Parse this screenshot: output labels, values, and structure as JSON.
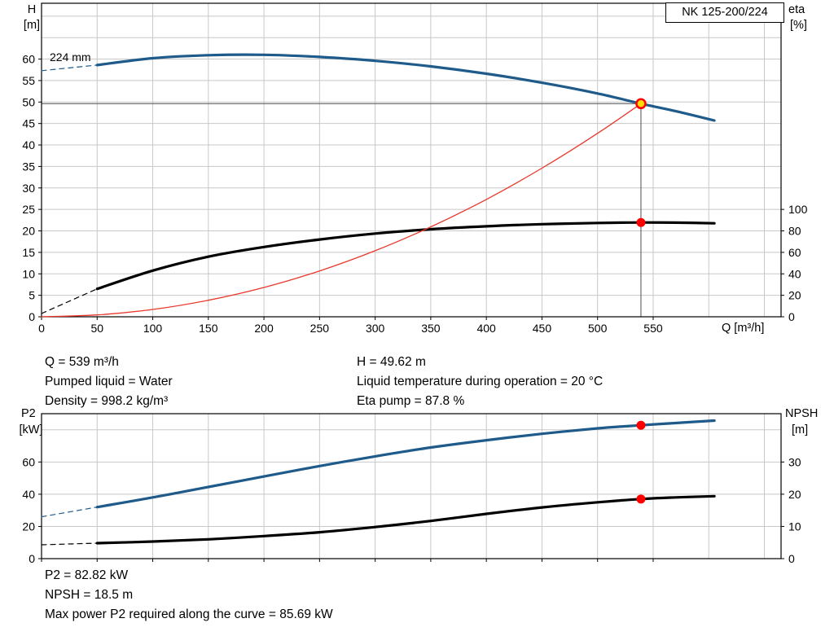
{
  "labels": {
    "h_axis": "H",
    "h_unit": "[m]",
    "eta_axis": "eta",
    "eta_unit": "[%]",
    "pump_name": "NK 125-200/224",
    "impeller_diameter": "224 mm",
    "q_axis": "Q [m³/h]",
    "p2_axis": "P2",
    "p2_unit": "[kW]",
    "npsh_axis": "NPSH",
    "npsh_unit": "[m]"
  },
  "operating_point_info": {
    "q": "Q = 539 m³/h",
    "pumped_liquid": "Pumped liquid = Water",
    "density": "Density = 998.2 kg/m³",
    "h": "H = 49.62 m",
    "liquid_temperature": "Liquid temperature during operation = 20 °C",
    "eta_pump": "Eta pump = 87.8 %"
  },
  "power_info": {
    "p2": "P2 = 82.82 kW",
    "npsh": "NPSH = 18.5 m",
    "max_power": "Max power P2 required along the curve = 85.69 kW"
  },
  "colors": {
    "curve_blue": "#1e5a8a",
    "curve_black": "#000000",
    "curve_red": "#e8382c",
    "marker_red": "#ff0000",
    "marker_yellow": "#ffdd00",
    "grid": "#c8c8c8",
    "axis": "#000000",
    "ref_line": "#4d4d4d"
  },
  "chart_data": [
    {
      "id": "head-capacity-chart",
      "type": "line",
      "title": "NK 125-200/224",
      "x_axis": {
        "label": "Q [m³/h]",
        "min": 0,
        "max": 665,
        "ticks": [
          0,
          50,
          100,
          150,
          200,
          250,
          300,
          350,
          400,
          450,
          500,
          550
        ],
        "grid": [
          50,
          100,
          150,
          200,
          250,
          300,
          350,
          400,
          450,
          500,
          550,
          600,
          650
        ]
      },
      "y_left": {
        "label": "H [m]",
        "min": 0,
        "max": 73,
        "ticks": [
          0,
          5,
          10,
          15,
          20,
          25,
          30,
          35,
          40,
          45,
          50,
          55,
          60
        ],
        "grid": [
          5,
          10,
          15,
          20,
          25,
          30,
          35,
          40,
          45,
          50,
          55,
          60,
          65,
          70
        ]
      },
      "y_right": {
        "label": "eta [%]",
        "min": 0,
        "max": 292,
        "ticks": [
          0,
          20,
          40,
          60,
          80,
          100
        ]
      },
      "duty_point": {
        "Q": 539,
        "H": 49.62,
        "eta": 87.8
      },
      "ref_lines": [
        {
          "x1": 0,
          "y1": 49.62,
          "x2": 539,
          "y2": 49.62
        },
        {
          "x1": 539,
          "y1": 0,
          "x2": 539,
          "y2": 49.62
        }
      ],
      "series": [
        {
          "name": "head-curve-dashed-extension",
          "color": "#1e5a8a",
          "width": 1.2,
          "dash": "6 5",
          "axis": "left",
          "points": [
            [
              0,
              57.3
            ],
            [
              50,
              58.6
            ]
          ]
        },
        {
          "name": "head-curve-224mm",
          "color": "#1e5a8a",
          "width": 3.2,
          "axis": "left",
          "points": [
            [
              50,
              58.6
            ],
            [
              100,
              60.2
            ],
            [
              150,
              60.9
            ],
            [
              200,
              61.0
            ],
            [
              250,
              60.5
            ],
            [
              300,
              59.6
            ],
            [
              350,
              58.3
            ],
            [
              400,
              56.6
            ],
            [
              450,
              54.5
            ],
            [
              500,
              52.0
            ],
            [
              539,
              49.62
            ],
            [
              570,
              47.9
            ],
            [
              605,
              45.7
            ]
          ]
        },
        {
          "name": "efficiency-curve-dashed-extension",
          "color": "#000000",
          "width": 1.2,
          "dash": "6 5",
          "axis": "right",
          "points": [
            [
              0,
              3
            ],
            [
              50,
              26
            ]
          ]
        },
        {
          "name": "efficiency-curve",
          "color": "#000000",
          "width": 3.2,
          "axis": "right",
          "points": [
            [
              50,
              26
            ],
            [
              100,
              43
            ],
            [
              150,
              56
            ],
            [
              200,
              65
            ],
            [
              250,
              72
            ],
            [
              300,
              77.5
            ],
            [
              350,
              81.5
            ],
            [
              400,
              84.3
            ],
            [
              450,
              86.2
            ],
            [
              500,
              87.4
            ],
            [
              539,
              87.8
            ],
            [
              570,
              87.7
            ],
            [
              605,
              87.1
            ]
          ]
        },
        {
          "name": "system-curve",
          "color": "#e8382c",
          "width": 1.3,
          "axis": "left",
          "points": [
            [
              0,
              0
            ],
            [
              50,
              0.43
            ],
            [
              100,
              1.71
            ],
            [
              150,
              3.84
            ],
            [
              200,
              6.83
            ],
            [
              250,
              10.68
            ],
            [
              300,
              15.37
            ],
            [
              350,
              20.93
            ],
            [
              400,
              27.33
            ],
            [
              450,
              34.6
            ],
            [
              500,
              42.71
            ],
            [
              539,
              49.62
            ]
          ]
        }
      ],
      "markers": [
        {
          "name": "duty-point-marker",
          "x": 539,
          "y": 49.62,
          "axis": "left",
          "r": 5.5,
          "fill": "#ffdd00",
          "stroke": "#ff0000",
          "stroke_width": 2.5
        },
        {
          "name": "eta-point-marker",
          "x": 539,
          "y": 87.8,
          "axis": "right",
          "r": 5,
          "fill": "#ff0000",
          "stroke": "#ff0000",
          "stroke_width": 1
        }
      ]
    },
    {
      "id": "power-npsh-chart",
      "type": "line",
      "x_axis": {
        "label": "",
        "min": 0,
        "max": 665,
        "ticks": [
          0,
          50,
          100,
          150,
          200,
          250,
          300,
          350,
          400,
          450,
          500,
          550
        ],
        "grid": [
          50,
          100,
          150,
          200,
          250,
          300,
          350,
          400,
          450,
          500,
          550,
          600,
          650
        ]
      },
      "y_left": {
        "label": "P2 [kW]",
        "min": 0,
        "max": 90,
        "ticks": [
          0,
          20,
          40,
          60
        ],
        "grid": [
          20,
          40,
          60,
          80
        ]
      },
      "y_right": {
        "label": "NPSH [m]",
        "min": 0,
        "max": 45,
        "ticks": [
          0,
          10,
          20,
          30
        ]
      },
      "duty_point": {
        "Q": 539,
        "P2": 82.82,
        "NPSH": 18.5,
        "P2_max_along_curve": 85.69
      },
      "ref_lines": [],
      "series": [
        {
          "name": "p2-curve-dashed-extension",
          "color": "#1e5a8a",
          "width": 1.2,
          "dash": "6 5",
          "axis": "left",
          "points": [
            [
              0,
              26
            ],
            [
              50,
              32
            ]
          ]
        },
        {
          "name": "p2-curve",
          "color": "#1e5a8a",
          "width": 3.2,
          "axis": "left",
          "points": [
            [
              50,
              32
            ],
            [
              100,
              38
            ],
            [
              150,
              44.5
            ],
            [
              200,
              51
            ],
            [
              250,
              57.5
            ],
            [
              300,
              63.5
            ],
            [
              350,
              69
            ],
            [
              400,
              73.5
            ],
            [
              450,
              77.5
            ],
            [
              500,
              80.9
            ],
            [
              539,
              82.82
            ],
            [
              570,
              84.2
            ],
            [
              605,
              85.69
            ]
          ]
        },
        {
          "name": "npsh-curve-dashed-extension",
          "color": "#000000",
          "width": 1.2,
          "dash": "6 5",
          "axis": "right",
          "points": [
            [
              0,
              4.3
            ],
            [
              50,
              4.8
            ]
          ]
        },
        {
          "name": "npsh-curve",
          "color": "#000000",
          "width": 3.2,
          "axis": "right",
          "points": [
            [
              50,
              4.8
            ],
            [
              100,
              5.3
            ],
            [
              150,
              6
            ],
            [
              200,
              7
            ],
            [
              250,
              8.2
            ],
            [
              300,
              9.8
            ],
            [
              350,
              11.7
            ],
            [
              400,
              13.9
            ],
            [
              450,
              15.9
            ],
            [
              500,
              17.5
            ],
            [
              539,
              18.5
            ],
            [
              570,
              19.0
            ],
            [
              605,
              19.4
            ]
          ]
        }
      ],
      "markers": [
        {
          "name": "p2-point-marker",
          "x": 539,
          "y": 82.82,
          "axis": "left",
          "r": 5,
          "fill": "#ff0000",
          "stroke": "#ff0000",
          "stroke_width": 1
        },
        {
          "name": "npsh-point-marker",
          "x": 539,
          "y": 18.5,
          "axis": "right",
          "r": 5,
          "fill": "#ff0000",
          "stroke": "#ff0000",
          "stroke_width": 1
        }
      ]
    }
  ]
}
